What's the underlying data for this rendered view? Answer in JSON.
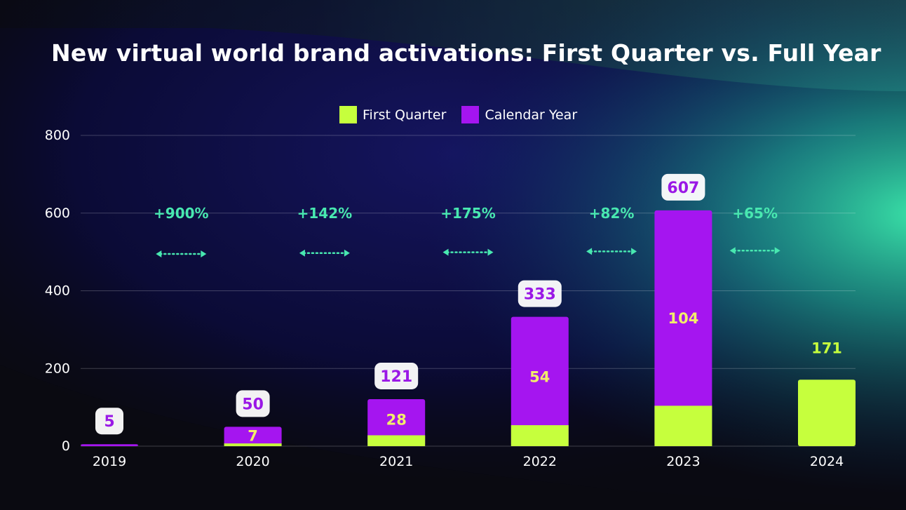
{
  "chart_data": {
    "type": "bar",
    "title": "New virtual world brand activations: First Quarter vs. Full Year",
    "categories": [
      "2019",
      "2020",
      "2021",
      "2022",
      "2023",
      "2024"
    ],
    "series": [
      {
        "name": "First Quarter",
        "color": "#c6ff3d",
        "values": [
          0,
          7,
          28,
          54,
          104,
          171
        ]
      },
      {
        "name": "Calendar Year",
        "color": "#a515f0",
        "values": [
          5,
          50,
          121,
          333,
          607,
          null
        ]
      }
    ],
    "first_quarter_labels": [
      "",
      "7",
      "28",
      "54",
      "104",
      "171"
    ],
    "calendar_year_labels": [
      "5",
      "50",
      "121",
      "333",
      "607",
      ""
    ],
    "ylim": [
      0,
      800
    ],
    "yticks": [
      "0",
      "200",
      "400",
      "600",
      "800"
    ],
    "xlabel": "",
    "ylabel": "",
    "grid": true,
    "legend_position": "top-center",
    "growth_annotations": [
      "+900%",
      "+142%",
      "+175%",
      "+82%",
      "+65%"
    ]
  },
  "colors": {
    "background": "#0b0b14",
    "first_quarter": "#c6ff3d",
    "calendar_year": "#a515f0",
    "annotation": "#48e8b0",
    "text": "#ffffff"
  }
}
